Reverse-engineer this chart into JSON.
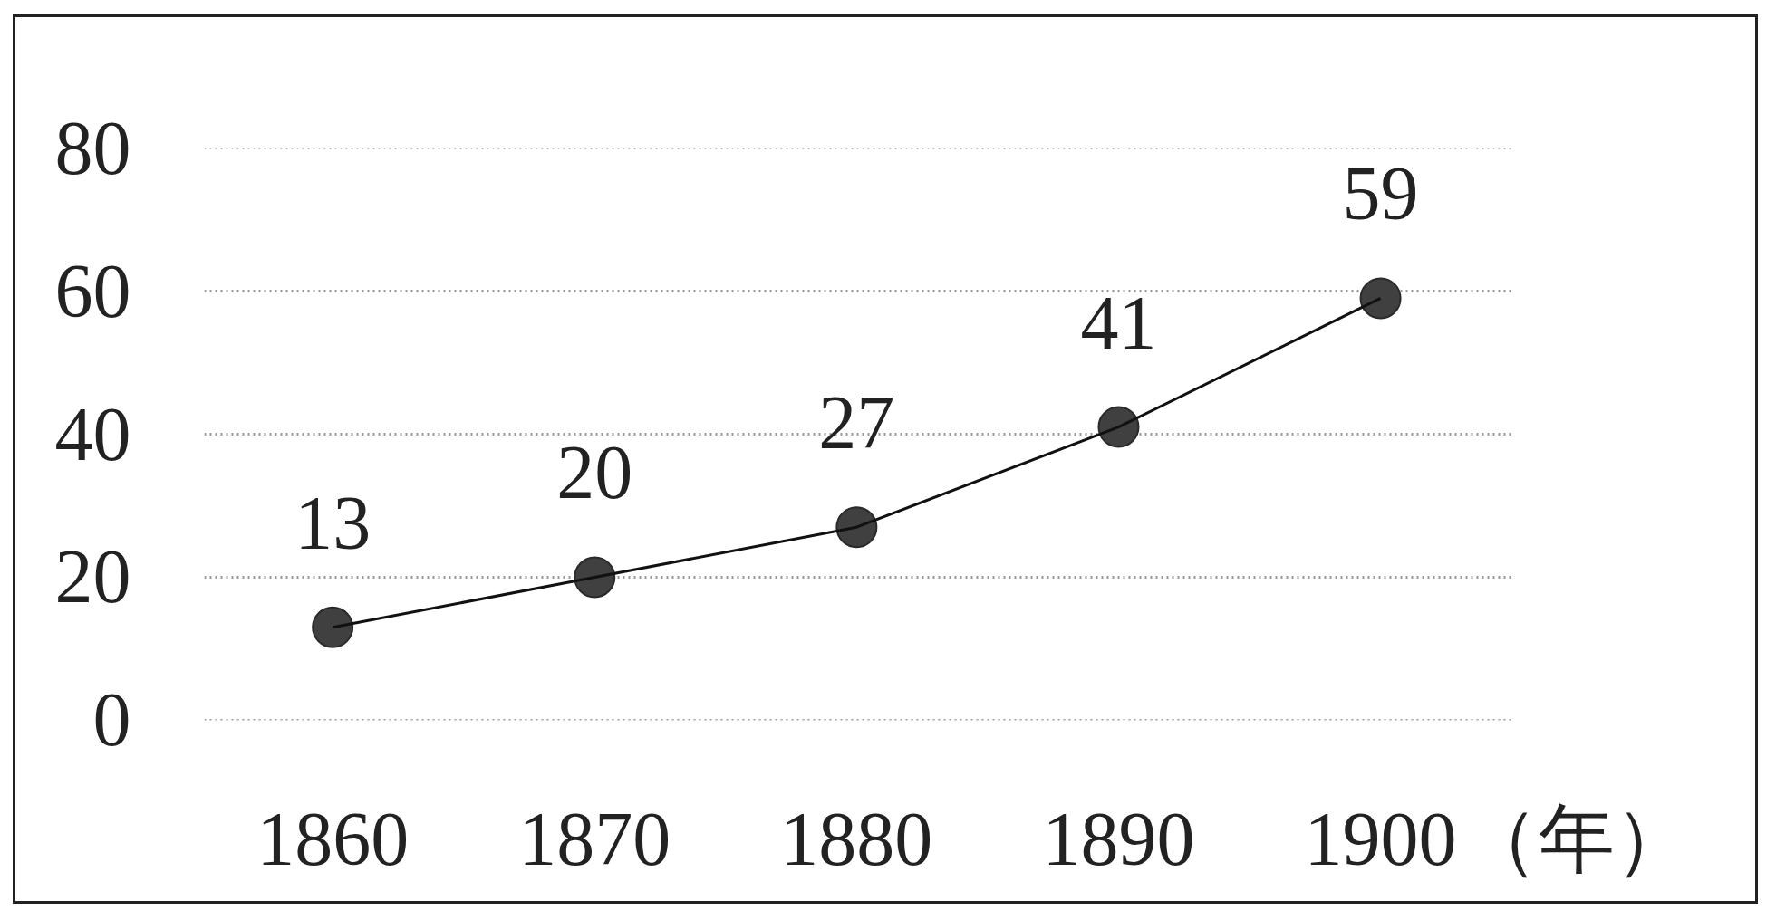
{
  "chart_data": {
    "type": "line",
    "xlabel": "（年）",
    "categories": [
      "1860",
      "1870",
      "1880",
      "1890",
      "1900"
    ],
    "values": [
      13,
      20,
      27,
      41,
      59
    ],
    "color": "#404040",
    "ylim": [
      0,
      80
    ],
    "yticks": [
      0,
      20,
      40,
      60,
      80
    ],
    "grid": "y",
    "marker": "circle",
    "line_style": "solid",
    "data_labels": true
  }
}
